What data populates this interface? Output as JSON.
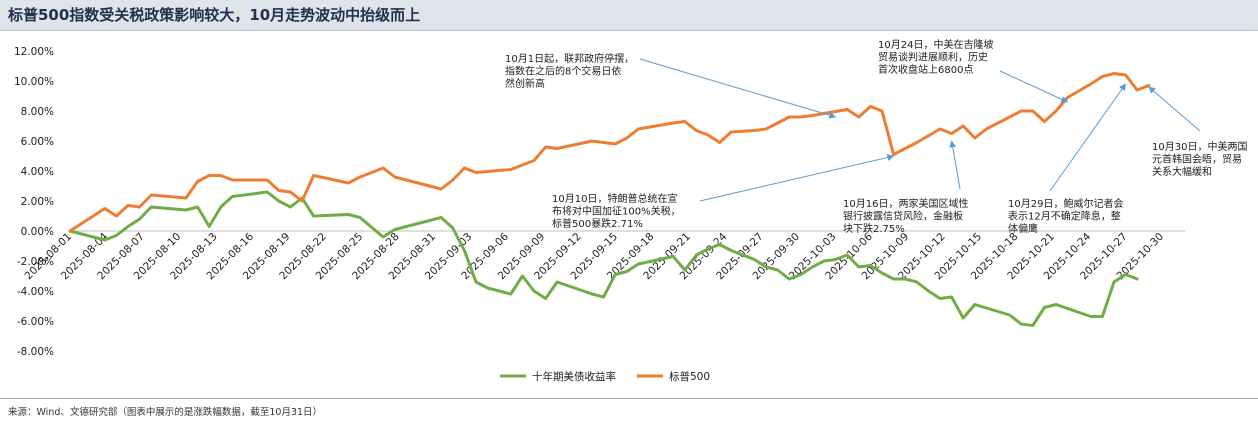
{
  "title": "标普500指数受关税政策影响较大，10月走势波动中抬级而上",
  "source": "来源：Wind、文德研究部（图表中展示的是涨跌幅数据，截至10月31日）",
  "chart_data": {
    "type": "line",
    "ylim": [
      -8,
      12
    ],
    "yticks": [
      "12.00%",
      "10.00%",
      "8.00%",
      "6.00%",
      "4.00%",
      "2.00%",
      "0.00%",
      "-2.00%",
      "-4.00%",
      "-6.00%",
      "-8.00%"
    ],
    "xticks": [
      "2025-08-01",
      "2025-08-04",
      "2025-08-07",
      "2025-08-10",
      "2025-08-13",
      "2025-08-16",
      "2025-08-19",
      "2025-08-22",
      "2025-08-25",
      "2025-08-28",
      "2025-08-31",
      "2025-09-03",
      "2025-09-06",
      "2025-09-09",
      "2025-09-12",
      "2025-09-15",
      "2025-09-18",
      "2025-09-21",
      "2025-09-24",
      "2025-09-27",
      "2025-09-30",
      "2025-10-03",
      "2025-10-06",
      "2025-10-09",
      "2025-10-12",
      "2025-10-15",
      "2025-10-18",
      "2025-10-21",
      "2025-10-24",
      "2025-10-27",
      "2025-10-30"
    ],
    "series": [
      {
        "name": "十年期美债收益率",
        "color": "#70ad47",
        "points": [
          [
            0,
            0
          ],
          [
            3,
            -0.6
          ],
          [
            4,
            -0.3
          ],
          [
            5,
            0.3
          ],
          [
            6,
            0.8
          ],
          [
            7,
            1.6
          ],
          [
            10,
            1.4
          ],
          [
            11,
            1.6
          ],
          [
            12,
            0.3
          ],
          [
            13,
            1.6
          ],
          [
            14,
            2.3
          ],
          [
            17,
            2.6
          ],
          [
            18,
            2.0
          ],
          [
            19,
            1.6
          ],
          [
            20,
            2.2
          ],
          [
            21,
            1.0
          ],
          [
            24,
            1.1
          ],
          [
            25,
            0.9
          ],
          [
            27,
            -0.4
          ],
          [
            28,
            0.1
          ],
          [
            32,
            0.9
          ],
          [
            33,
            0.2
          ],
          [
            34,
            -1.3
          ],
          [
            35,
            -3.4
          ],
          [
            36,
            -3.8
          ],
          [
            38,
            -4.2
          ],
          [
            39,
            -3.0
          ],
          [
            40,
            -4.0
          ],
          [
            41,
            -4.5
          ],
          [
            42,
            -3.4
          ],
          [
            45,
            -4.2
          ],
          [
            46,
            -4.4
          ],
          [
            47,
            -2.9
          ],
          [
            48,
            -2.7
          ],
          [
            49,
            -2.2
          ],
          [
            52,
            -1.7
          ],
          [
            53,
            -2.6
          ],
          [
            54,
            -1.6
          ],
          [
            55,
            -1.2
          ],
          [
            56,
            -0.9
          ],
          [
            57,
            -1.3
          ],
          [
            59,
            -1.9
          ],
          [
            60,
            -2.4
          ],
          [
            61,
            -2.6
          ],
          [
            62,
            -3.2
          ],
          [
            63,
            -2.9
          ],
          [
            64,
            -2.4
          ],
          [
            65,
            -2.0
          ],
          [
            66,
            -1.9
          ],
          [
            67,
            -1.6
          ],
          [
            68,
            -2.4
          ],
          [
            69,
            -2.3
          ],
          [
            70,
            -2.8
          ],
          [
            71,
            -3.2
          ],
          [
            72,
            -3.2
          ],
          [
            73,
            -3.4
          ],
          [
            74,
            -4.0
          ],
          [
            75,
            -4.5
          ],
          [
            76,
            -4.4
          ],
          [
            77,
            -5.8
          ],
          [
            78,
            -4.9
          ],
          [
            81,
            -5.6
          ],
          [
            82,
            -6.2
          ],
          [
            83,
            -6.3
          ],
          [
            84,
            -5.1
          ],
          [
            85,
            -4.9
          ],
          [
            88,
            -5.7
          ],
          [
            89,
            -5.7
          ],
          [
            90,
            -3.4
          ],
          [
            91,
            -2.9
          ],
          [
            92,
            -3.2
          ]
        ]
      },
      {
        "name": "标普500",
        "color": "#ed7d31",
        "points": [
          [
            0,
            0
          ],
          [
            3,
            1.5
          ],
          [
            4,
            1.0
          ],
          [
            5,
            1.7
          ],
          [
            6,
            1.6
          ],
          [
            7,
            2.4
          ],
          [
            10,
            2.2
          ],
          [
            11,
            3.3
          ],
          [
            12,
            3.7
          ],
          [
            13,
            3.7
          ],
          [
            14,
            3.4
          ],
          [
            17,
            3.4
          ],
          [
            18,
            2.7
          ],
          [
            19,
            2.6
          ],
          [
            20,
            2.0
          ],
          [
            21,
            3.7
          ],
          [
            24,
            3.2
          ],
          [
            25,
            3.6
          ],
          [
            26,
            3.9
          ],
          [
            27,
            4.2
          ],
          [
            28,
            3.6
          ],
          [
            32,
            2.8
          ],
          [
            33,
            3.4
          ],
          [
            34,
            4.2
          ],
          [
            35,
            3.9
          ],
          [
            38,
            4.1
          ],
          [
            40,
            4.7
          ],
          [
            41,
            5.6
          ],
          [
            42,
            5.5
          ],
          [
            45,
            6.0
          ],
          [
            46,
            5.9
          ],
          [
            47,
            5.8
          ],
          [
            48,
            6.2
          ],
          [
            49,
            6.8
          ],
          [
            52,
            7.2
          ],
          [
            53,
            7.3
          ],
          [
            54,
            6.7
          ],
          [
            55,
            6.4
          ],
          [
            56,
            5.9
          ],
          [
            57,
            6.6
          ],
          [
            59,
            6.7
          ],
          [
            60,
            6.8
          ],
          [
            61,
            7.2
          ],
          [
            62,
            7.6
          ],
          [
            63,
            7.6
          ],
          [
            64,
            7.7
          ],
          [
            67,
            8.1
          ],
          [
            68,
            7.6
          ],
          [
            69,
            8.3
          ],
          [
            70,
            8.0
          ],
          [
            71,
            5.1
          ],
          [
            73,
            5.9
          ],
          [
            75,
            6.8
          ],
          [
            76,
            6.5
          ],
          [
            77,
            7.0
          ],
          [
            78,
            6.2
          ],
          [
            79,
            6.8
          ],
          [
            81,
            7.6
          ],
          [
            82,
            8.0
          ],
          [
            83,
            8.0
          ],
          [
            84,
            7.3
          ],
          [
            85,
            8.0
          ],
          [
            86,
            8.9
          ],
          [
            88,
            9.8
          ],
          [
            89,
            10.3
          ],
          [
            90,
            10.5
          ],
          [
            91,
            10.4
          ],
          [
            92,
            9.4
          ],
          [
            93,
            9.7
          ]
        ]
      }
    ],
    "annotations": [
      {
        "id": "a1",
        "lines": [
          "10月1日起，联邦政府停摆，",
          "指数在之后的8个交易日依",
          "然创新高"
        ],
        "target": [
          66,
          7.6
        ]
      },
      {
        "id": "a2",
        "lines": [
          "10月24日，中美在吉隆坡",
          "贸易谈判进展顺利，历史",
          "首次收盘站上6800点"
        ],
        "target": [
          86,
          8.6
        ]
      },
      {
        "id": "a3",
        "lines": [
          "10月10日，特朗普总统在宣",
          "布将对中国加征100%关税，",
          "标普500暴跌2.71%"
        ],
        "target": [
          71,
          5.0
        ]
      },
      {
        "id": "a4",
        "lines": [
          "10月16日，两家美国区域性",
          "银行披露信贷风险，金融板",
          "块下跌2.75%"
        ],
        "target": [
          76,
          6.0
        ]
      },
      {
        "id": "a5",
        "lines": [
          "10月29日，鲍威尔记者会",
          "表示12月不确定降息，整",
          "体偏鹰"
        ],
        "target": [
          91,
          9.8
        ]
      },
      {
        "id": "a6",
        "lines": [
          "10月30日，中美两国",
          "元首韩国会晤，贸易",
          "关系大幅缓和"
        ],
        "target": [
          93,
          9.6
        ]
      }
    ],
    "legend": [
      {
        "label": "十年期美债收益率",
        "color": "#70ad47"
      },
      {
        "label": "标普500",
        "color": "#ed7d31"
      }
    ]
  }
}
